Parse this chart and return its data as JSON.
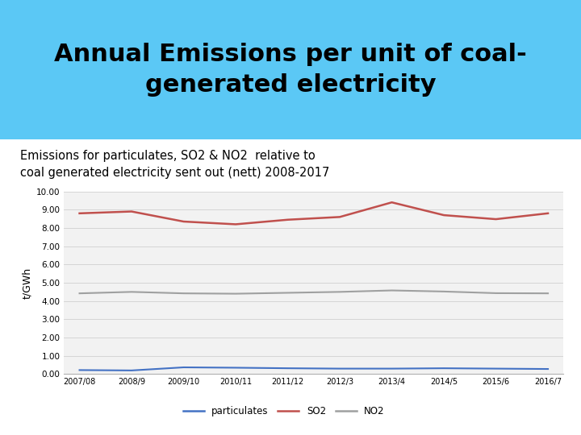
{
  "title": "Annual Emissions per unit of coal-\ngenerated electricity",
  "subtitle": "Emissions for particulates, SO2 & NO2  relative to\ncoal generated electricity sent out (nett) 2008-2017",
  "ylabel": "t/GWh",
  "x_labels": [
    "2007/08",
    "2008/9",
    "2009/10",
    "2010/11",
    "2011/12",
    "2012/3",
    "2013/4",
    "2014/5",
    "2015/6",
    "2016/7"
  ],
  "particulates": [
    0.22,
    0.2,
    0.37,
    0.35,
    0.32,
    0.3,
    0.3,
    0.32,
    0.3,
    0.28
  ],
  "SO2": [
    8.8,
    8.9,
    8.35,
    8.2,
    8.45,
    8.6,
    9.4,
    8.7,
    8.48,
    8.8
  ],
  "NO2": [
    4.42,
    4.5,
    4.42,
    4.4,
    4.45,
    4.5,
    4.58,
    4.52,
    4.43,
    4.42
  ],
  "particulates_color": "#4472c4",
  "SO2_color": "#c0504d",
  "NO2_color": "#9fa0a0",
  "ylim": [
    0,
    10.0
  ],
  "yticks": [
    0.0,
    1.0,
    2.0,
    3.0,
    4.0,
    5.0,
    6.0,
    7.0,
    8.0,
    9.0,
    10.0
  ],
  "ytick_labels": [
    "0.00",
    "1.00",
    "2.00",
    "3.00",
    "4.00",
    "5.00",
    "6.00",
    "7.00",
    "8.00",
    "9.00",
    "10.00"
  ],
  "title_bg_color": "#5bc8f5",
  "chart_bg_color": "#f2f2f2",
  "title_fontsize": 22,
  "subtitle_fontsize": 10.5,
  "legend_labels": [
    "particulates",
    "SO2",
    "NO2"
  ],
  "title_split": [
    "Annual Emissions per unit of coal-",
    "generated electricity"
  ]
}
